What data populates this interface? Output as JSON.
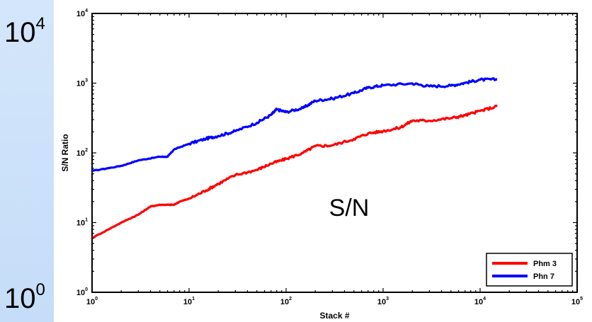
{
  "slide": {
    "top_label_base": "10",
    "top_label_exp": "4",
    "bottom_label_base": "10",
    "bottom_label_exp": "0",
    "annotation": "S/N"
  },
  "chart_data": {
    "type": "line",
    "xlabel": "Stack #",
    "ylabel": "S/N Ratio",
    "xscale": "log",
    "yscale": "log",
    "xlim": [
      1,
      100000
    ],
    "ylim": [
      1,
      10000
    ],
    "x_ticks": [
      1,
      10,
      100,
      1000,
      10000,
      100000
    ],
    "y_ticks": [
      1,
      10,
      100,
      1000,
      10000
    ],
    "x_tick_labels": [
      {
        "base": "10",
        "exp": "0"
      },
      {
        "base": "10",
        "exp": "1"
      },
      {
        "base": "10",
        "exp": "2"
      },
      {
        "base": "10",
        "exp": "3"
      },
      {
        "base": "10",
        "exp": "4"
      },
      {
        "base": "10",
        "exp": "5"
      }
    ],
    "y_tick_labels": [
      {
        "base": "10",
        "exp": "0"
      },
      {
        "base": "10",
        "exp": "1"
      },
      {
        "base": "10",
        "exp": "2"
      },
      {
        "base": "10",
        "exp": "3"
      },
      {
        "base": "10",
        "exp": "4"
      }
    ],
    "grid": false,
    "legend_position": "bottom-right",
    "series": [
      {
        "name": "Phn 7",
        "color": "#0000ff",
        "x": [
          1,
          2,
          3,
          5,
          6,
          7,
          10,
          15,
          20,
          30,
          50,
          70,
          80,
          100,
          150,
          200,
          300,
          500,
          700,
          1000,
          2000,
          3000,
          5000,
          7000,
          10000,
          15000
        ],
        "y": [
          55,
          65,
          78,
          88,
          88,
          112,
          135,
          160,
          175,
          205,
          270,
          350,
          420,
          385,
          440,
          560,
          600,
          720,
          860,
          930,
          990,
          900,
          920,
          1010,
          1120,
          1130
        ]
      },
      {
        "name": "Phm 3",
        "color": "#ff0000",
        "x": [
          1,
          2,
          3,
          4,
          5,
          6,
          7,
          8,
          10,
          15,
          20,
          30,
          50,
          70,
          100,
          150,
          200,
          300,
          500,
          700,
          1000,
          1500,
          2000,
          3000,
          5000,
          7000,
          10000,
          15000
        ],
        "y": [
          6,
          10,
          13,
          17,
          18,
          18,
          18,
          20,
          22,
          29,
          36,
          48,
          57,
          70,
          82,
          100,
          125,
          128,
          158,
          190,
          205,
          230,
          290,
          290,
          315,
          345,
          400,
          465
        ]
      }
    ]
  }
}
